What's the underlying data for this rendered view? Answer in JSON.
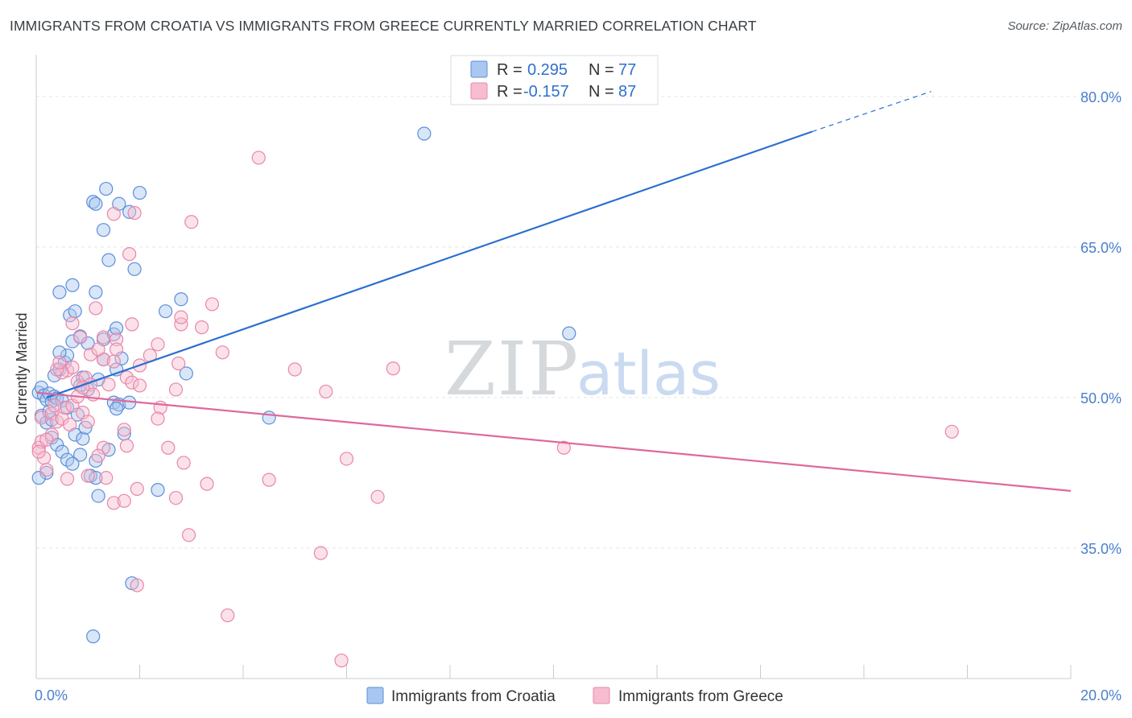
{
  "title": "IMMIGRANTS FROM CROATIA VS IMMIGRANTS FROM GREECE CURRENTLY MARRIED CORRELATION CHART",
  "source": "Source: ZipAtlas.com",
  "watermark": {
    "zip": "ZIP",
    "atlas": "atlas"
  },
  "colors": {
    "croatia_fill": "#a9c7f0",
    "croatia_stroke": "#5b8fd8",
    "croatia_line": "#2a6fd0",
    "greece_fill": "#f7bcd0",
    "greece_stroke": "#e887a8",
    "greece_line": "#e0689a",
    "grid": "#e3e6ea",
    "axis_label": "#4a7fcf"
  },
  "legend": {
    "row1": {
      "r_label": "R =",
      "r_value": "0.295",
      "n_label": "N =",
      "n_value": "77"
    },
    "row2": {
      "r_label": "R =",
      "r_value": "-0.157",
      "n_label": "N =",
      "n_value": "87"
    }
  },
  "chart_data": {
    "type": "scatter",
    "title": "IMMIGRANTS FROM CROATIA VS IMMIGRANTS FROM GREECE CURRENTLY MARRIED CORRELATION CHART",
    "xlabel": "",
    "ylabel": "Currently Married",
    "xlim": [
      0,
      20
    ],
    "ylim": [
      22,
      84
    ],
    "x_tick_labels": [
      "0.0%",
      "20.0%"
    ],
    "y_ticks": [
      35,
      50,
      65,
      80
    ],
    "y_tick_labels": [
      "35.0%",
      "50.0%",
      "65.0%",
      "80.0%"
    ],
    "grid": true,
    "legend_position": "top-center",
    "series": [
      {
        "name": "Immigrants from Croatia",
        "color": "#5b8fd8",
        "trend": {
          "x0": 0.2,
          "y0": 50.0,
          "x1": 15.0,
          "y1": 76.5,
          "dash_to_x": 17.3,
          "dash_to_y": 80.5
        },
        "points": [
          [
            0.05,
            50.5
          ],
          [
            0.1,
            51.0
          ],
          [
            0.15,
            50.2
          ],
          [
            0.2,
            49.8
          ],
          [
            0.25,
            50.4
          ],
          [
            0.3,
            49.6
          ],
          [
            0.35,
            50.1
          ],
          [
            0.4,
            49.9
          ],
          [
            0.1,
            48.2
          ],
          [
            0.2,
            47.5
          ],
          [
            0.3,
            46.0
          ],
          [
            0.4,
            45.3
          ],
          [
            0.5,
            44.6
          ],
          [
            0.6,
            43.8
          ],
          [
            0.2,
            42.5
          ],
          [
            0.05,
            42.0
          ],
          [
            0.35,
            52.2
          ],
          [
            0.45,
            52.8
          ],
          [
            0.55,
            53.5
          ],
          [
            0.6,
            54.2
          ],
          [
            0.45,
            54.5
          ],
          [
            0.7,
            55.6
          ],
          [
            0.85,
            56.1
          ],
          [
            0.65,
            58.2
          ],
          [
            0.75,
            58.6
          ],
          [
            0.45,
            60.5
          ],
          [
            0.7,
            61.2
          ],
          [
            1.15,
            60.5
          ],
          [
            1.0,
            55.4
          ],
          [
            0.9,
            52.0
          ],
          [
            1.2,
            51.8
          ],
          [
            1.3,
            53.8
          ],
          [
            1.3,
            55.8
          ],
          [
            1.5,
            56.3
          ],
          [
            1.55,
            56.9
          ],
          [
            1.65,
            53.9
          ],
          [
            1.55,
            52.8
          ],
          [
            1.5,
            49.5
          ],
          [
            1.6,
            49.3
          ],
          [
            1.55,
            48.9
          ],
          [
            1.4,
            44.8
          ],
          [
            1.15,
            43.7
          ],
          [
            1.05,
            42.2
          ],
          [
            1.15,
            42.0
          ],
          [
            1.2,
            40.2
          ],
          [
            0.85,
            44.3
          ],
          [
            0.75,
            46.3
          ],
          [
            0.9,
            45.9
          ],
          [
            0.7,
            43.4
          ],
          [
            1.0,
            50.8
          ],
          [
            0.85,
            51.2
          ],
          [
            1.4,
            63.7
          ],
          [
            1.3,
            66.7
          ],
          [
            1.1,
            69.5
          ],
          [
            1.15,
            69.3
          ],
          [
            1.35,
            70.8
          ],
          [
            1.6,
            69.3
          ],
          [
            1.8,
            68.5
          ],
          [
            2.0,
            70.4
          ],
          [
            1.9,
            62.8
          ],
          [
            2.5,
            58.6
          ],
          [
            2.8,
            59.8
          ],
          [
            2.9,
            52.4
          ],
          [
            1.8,
            49.5
          ],
          [
            1.85,
            31.5
          ],
          [
            1.1,
            26.2
          ],
          [
            2.35,
            40.8
          ],
          [
            4.5,
            48.0
          ],
          [
            7.5,
            76.3
          ],
          [
            10.3,
            56.4
          ],
          [
            0.5,
            49.7
          ],
          [
            0.6,
            49.0
          ],
          [
            0.8,
            48.3
          ],
          [
            0.95,
            47.0
          ],
          [
            0.3,
            47.8
          ],
          [
            0.25,
            48.6
          ],
          [
            1.7,
            46.4
          ]
        ]
      },
      {
        "name": "Immigrants from Greece",
        "color": "#e887a8",
        "trend": {
          "x0": 0.0,
          "y0": 50.5,
          "x1": 20.0,
          "y1": 40.7
        },
        "points": [
          [
            0.05,
            45.0
          ],
          [
            0.1,
            45.6
          ],
          [
            0.15,
            44.0
          ],
          [
            0.2,
            42.8
          ],
          [
            0.1,
            48.0
          ],
          [
            0.3,
            48.4
          ],
          [
            0.4,
            47.6
          ],
          [
            0.5,
            47.9
          ],
          [
            0.55,
            49.0
          ],
          [
            0.35,
            49.2
          ],
          [
            0.6,
            52.7
          ],
          [
            0.7,
            53.0
          ],
          [
            0.5,
            52.5
          ],
          [
            0.8,
            51.6
          ],
          [
            0.95,
            52.0
          ],
          [
            1.05,
            51.3
          ],
          [
            0.85,
            56.0
          ],
          [
            0.7,
            57.4
          ],
          [
            1.15,
            58.9
          ],
          [
            1.3,
            56.0
          ],
          [
            1.05,
            54.3
          ],
          [
            1.3,
            53.8
          ],
          [
            1.5,
            53.6
          ],
          [
            1.55,
            55.8
          ],
          [
            1.55,
            54.8
          ],
          [
            1.75,
            52.0
          ],
          [
            1.85,
            51.5
          ],
          [
            2.0,
            53.2
          ],
          [
            2.2,
            54.2
          ],
          [
            2.35,
            55.3
          ],
          [
            1.85,
            57.3
          ],
          [
            1.5,
            68.3
          ],
          [
            1.8,
            64.3
          ],
          [
            1.9,
            68.4
          ],
          [
            3.0,
            67.5
          ],
          [
            2.8,
            57.3
          ],
          [
            2.8,
            58.0
          ],
          [
            3.2,
            57.0
          ],
          [
            3.4,
            59.3
          ],
          [
            3.6,
            54.5
          ],
          [
            2.75,
            53.4
          ],
          [
            2.7,
            50.8
          ],
          [
            2.4,
            49.0
          ],
          [
            2.35,
            47.9
          ],
          [
            2.55,
            45.0
          ],
          [
            2.85,
            43.5
          ],
          [
            2.7,
            40.0
          ],
          [
            2.95,
            36.3
          ],
          [
            3.3,
            41.4
          ],
          [
            4.5,
            41.8
          ],
          [
            5.0,
            52.8
          ],
          [
            5.6,
            50.6
          ],
          [
            6.0,
            43.9
          ],
          [
            6.6,
            40.1
          ],
          [
            6.9,
            52.9
          ],
          [
            5.5,
            34.5
          ],
          [
            4.3,
            73.9
          ],
          [
            3.7,
            28.3
          ],
          [
            5.9,
            23.8
          ],
          [
            1.95,
            31.3
          ],
          [
            1.5,
            39.5
          ],
          [
            1.7,
            39.7
          ],
          [
            1.95,
            40.9
          ],
          [
            1.35,
            42.0
          ],
          [
            1.0,
            42.2
          ],
          [
            1.3,
            45.0
          ],
          [
            1.2,
            44.2
          ],
          [
            1.7,
            46.8
          ],
          [
            0.7,
            49.2
          ],
          [
            0.8,
            50.1
          ],
          [
            0.9,
            48.5
          ],
          [
            1.0,
            47.6
          ],
          [
            0.9,
            51.0
          ],
          [
            1.1,
            50.3
          ],
          [
            0.4,
            52.8
          ],
          [
            0.45,
            53.5
          ],
          [
            0.3,
            46.3
          ],
          [
            0.2,
            45.8
          ],
          [
            0.65,
            47.3
          ],
          [
            0.05,
            44.6
          ],
          [
            0.6,
            41.9
          ],
          [
            1.4,
            51.3
          ],
          [
            10.2,
            45.0
          ],
          [
            17.7,
            46.6
          ],
          [
            1.75,
            45.2
          ],
          [
            2.0,
            51.2
          ],
          [
            1.2,
            54.8
          ]
        ]
      }
    ]
  }
}
